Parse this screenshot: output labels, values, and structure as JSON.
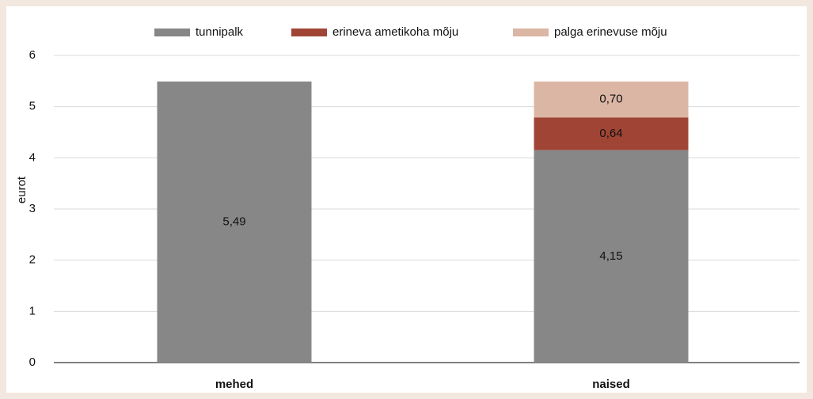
{
  "chart_data": {
    "type": "stacked_bar",
    "categories": [
      "mehed",
      "naised"
    ],
    "series": [
      {
        "name": "tunnipalk",
        "color": "#878787",
        "values": [
          5.49,
          4.15
        ],
        "value_labels": [
          "5,49",
          "4,15"
        ]
      },
      {
        "name": "erineva ametikoha mõju",
        "color": "#a04535",
        "values": [
          null,
          0.64
        ],
        "value_labels": [
          null,
          "0,64"
        ]
      },
      {
        "name": "palga erinevuse mõju",
        "color": "#dbb6a4",
        "values": [
          null,
          0.7
        ],
        "value_labels": [
          null,
          "0,70"
        ]
      }
    ],
    "y_label": "eurot",
    "ylim": [
      0,
      6
    ],
    "yticks": [
      0,
      1,
      2,
      3,
      4,
      5,
      6
    ],
    "grid": true,
    "legend": "top"
  }
}
